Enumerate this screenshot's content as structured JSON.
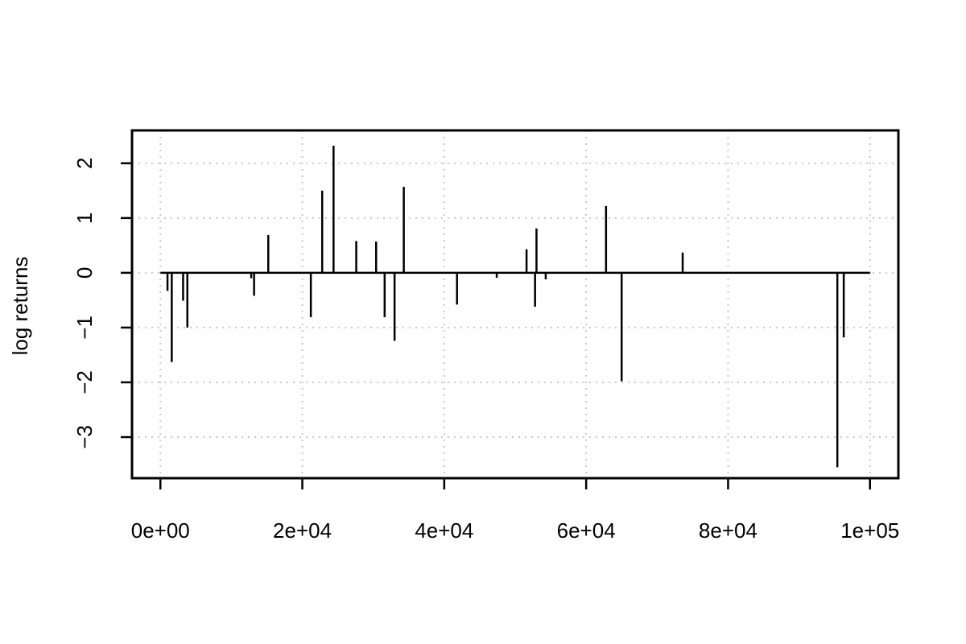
{
  "chart_data": {
    "type": "bar",
    "title": "",
    "xlabel": "",
    "ylabel": "log returns",
    "xlim": [
      -4000,
      104000
    ],
    "ylim": [
      -3.75,
      2.6
    ],
    "grid": true,
    "x_ticks": [
      0,
      20000,
      40000,
      60000,
      80000,
      100000
    ],
    "x_tick_labels": [
      "0e+00",
      "2e+04",
      "4e+04",
      "6e+04",
      "8e+04",
      "1e+05"
    ],
    "y_ticks": [
      -3,
      -2,
      -1,
      0,
      1,
      2
    ],
    "y_tick_labels": [
      "−3",
      "−2",
      "−1",
      "0",
      "1",
      "2"
    ],
    "series_line_range": [
      0,
      100000
    ],
    "values": [
      {
        "x": 1000,
        "y": -0.33
      },
      {
        "x": 1600,
        "y": -1.63
      },
      {
        "x": 3200,
        "y": -0.51
      },
      {
        "x": 3800,
        "y": -1.0
      },
      {
        "x": 12800,
        "y": -0.1
      },
      {
        "x": 13200,
        "y": -0.42
      },
      {
        "x": 15200,
        "y": 0.69
      },
      {
        "x": 21200,
        "y": -0.81
      },
      {
        "x": 22800,
        "y": 1.5
      },
      {
        "x": 24400,
        "y": 2.32
      },
      {
        "x": 27600,
        "y": 0.58
      },
      {
        "x": 30400,
        "y": 0.57
      },
      {
        "x": 31600,
        "y": -0.81
      },
      {
        "x": 33000,
        "y": -1.24
      },
      {
        "x": 34300,
        "y": 1.57
      },
      {
        "x": 41800,
        "y": -0.58
      },
      {
        "x": 47400,
        "y": -0.09
      },
      {
        "x": 51600,
        "y": 0.43
      },
      {
        "x": 52800,
        "y": -0.62
      },
      {
        "x": 53000,
        "y": 0.81
      },
      {
        "x": 54300,
        "y": -0.12
      },
      {
        "x": 62800,
        "y": 1.22
      },
      {
        "x": 65000,
        "y": -1.98
      },
      {
        "x": 73600,
        "y": 0.37
      },
      {
        "x": 95400,
        "y": -3.55
      },
      {
        "x": 96300,
        "y": -1.18
      }
    ]
  }
}
